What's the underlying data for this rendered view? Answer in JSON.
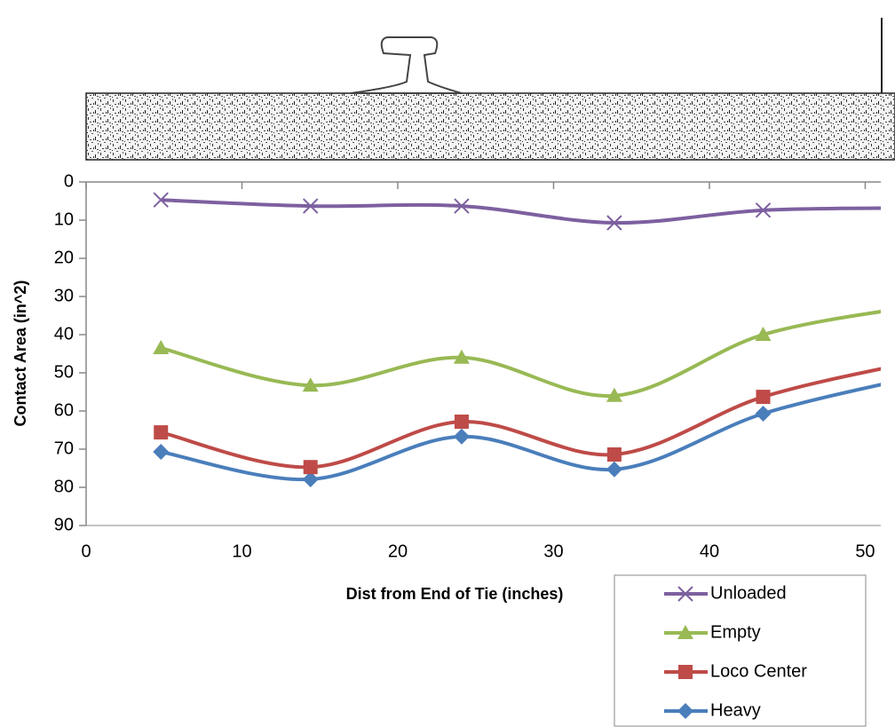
{
  "chart_data": {
    "type": "line",
    "smooth": true,
    "y_inverted": true,
    "x_label": "Dist from End of Tie (inches)",
    "y_label": "Contact Area (in^2)",
    "x": [
      4.8,
      14.4,
      24.1,
      33.9,
      43.45,
      53.3
    ],
    "series": [
      {
        "name": "Unloaded",
        "color": "#7d60a0",
        "marker": "x",
        "values": [
          4.7,
          6.3,
          6.3,
          10.7,
          7.4,
          6.8
        ]
      },
      {
        "name": "Empty",
        "color": "#98b954",
        "marker": "triangle",
        "values": [
          43.5,
          53.3,
          46,
          56,
          40,
          32.5
        ]
      },
      {
        "name": "Loco Center",
        "color": "#be4b48",
        "marker": "square",
        "values": [
          65.6,
          74.7,
          62.8,
          71.4,
          56.3,
          47
        ]
      },
      {
        "name": "Heavy",
        "color": "#4a7ebb",
        "marker": "diamond",
        "values": [
          70.7,
          77.9,
          66.7,
          75.3,
          60.7,
          51
        ]
      }
    ],
    "xlim": [
      0,
      51
    ],
    "xticks": [
      0,
      10,
      20,
      30,
      40,
      50
    ],
    "ylim": [
      0,
      90
    ],
    "yticks": [
      0,
      10,
      20,
      30,
      40,
      50,
      60,
      70,
      80,
      90
    ],
    "legend": "bottom-right"
  }
}
